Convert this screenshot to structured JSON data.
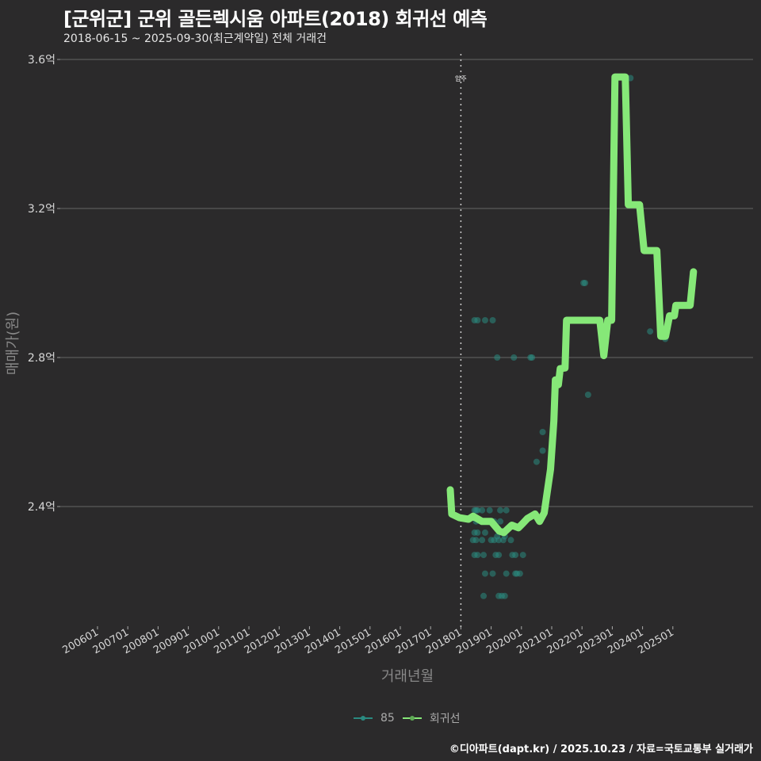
{
  "header": {
    "title": "[군위군] 군위 골든렉시움 아파트(2018) 회귀선 예측",
    "subtitle": "2018-06-15 ~ 2025-09-30(최근계약일) 전체 거래건"
  },
  "footer": {
    "credit": "©디아파트(dapt.kr) / 2025.10.23 / 자료=국토교통부 실거래가"
  },
  "legend": {
    "items": [
      {
        "label": "85",
        "color": "#2a8a80"
      },
      {
        "label": "회귀선",
        "color": "#86e878"
      }
    ]
  },
  "colors": {
    "background": "#2b2a2b",
    "grid": "#5a5a5a",
    "scatter": "#2a8a80",
    "regression": "#86e878",
    "annotation_line": "#cccccc"
  },
  "chart_data": {
    "type": "scatter",
    "title": "[군위군] 군위 골든렉시움 아파트(2018) 회귀선 예측",
    "subtitle": "2018-06-15 ~ 2025-09-30(최근계약일) 전체 거래건",
    "xlabel": "거래년월",
    "ylabel": "매매가(원)",
    "x_ticks": [
      "200601",
      "200701",
      "200801",
      "200901",
      "201001",
      "201101",
      "201201",
      "201301",
      "201401",
      "201501",
      "201601",
      "201701",
      "201801",
      "201901",
      "202001",
      "202101",
      "202201",
      "202301",
      "202401",
      "202501"
    ],
    "y_ticks": [
      "2.4억",
      "2.8억",
      "3.2억",
      "3.6억"
    ],
    "y_tick_values": [
      2.4,
      2.8,
      3.2,
      3.6
    ],
    "ylim": [
      2.08,
      3.6
    ],
    "xlim": [
      2005.8,
      2026.0
    ],
    "grid": true,
    "legend_position": "bottom",
    "annotation": {
      "label": "입주",
      "x": 2018.0
    },
    "series": [
      {
        "name": "85",
        "kind": "scatter",
        "points": [
          [
            2018.45,
            2.39
          ],
          [
            2018.5,
            2.39
          ],
          [
            2018.55,
            2.39
          ],
          [
            2018.7,
            2.39
          ],
          [
            2018.95,
            2.39
          ],
          [
            2019.3,
            2.39
          ],
          [
            2019.5,
            2.39
          ],
          [
            2018.5,
            2.36
          ],
          [
            2018.7,
            2.36
          ],
          [
            2018.9,
            2.36
          ],
          [
            2019.1,
            2.36
          ],
          [
            2019.3,
            2.36
          ],
          [
            2018.45,
            2.33
          ],
          [
            2018.55,
            2.33
          ],
          [
            2018.8,
            2.33
          ],
          [
            2019.2,
            2.32
          ],
          [
            2019.45,
            2.32
          ],
          [
            2018.4,
            2.31
          ],
          [
            2018.5,
            2.31
          ],
          [
            2018.7,
            2.31
          ],
          [
            2019.0,
            2.31
          ],
          [
            2019.1,
            2.31
          ],
          [
            2019.25,
            2.31
          ],
          [
            2019.4,
            2.31
          ],
          [
            2019.65,
            2.31
          ],
          [
            2018.45,
            2.27
          ],
          [
            2018.55,
            2.27
          ],
          [
            2018.75,
            2.27
          ],
          [
            2019.15,
            2.27
          ],
          [
            2019.25,
            2.27
          ],
          [
            2019.7,
            2.27
          ],
          [
            2019.8,
            2.27
          ],
          [
            2020.05,
            2.27
          ],
          [
            2018.8,
            2.22
          ],
          [
            2019.05,
            2.22
          ],
          [
            2019.5,
            2.22
          ],
          [
            2019.8,
            2.22
          ],
          [
            2019.85,
            2.22
          ],
          [
            2019.95,
            2.22
          ],
          [
            2018.75,
            2.16
          ],
          [
            2019.25,
            2.16
          ],
          [
            2019.35,
            2.16
          ],
          [
            2019.45,
            2.16
          ],
          [
            2018.45,
            2.9
          ],
          [
            2018.55,
            2.9
          ],
          [
            2018.8,
            2.9
          ],
          [
            2019.05,
            2.9
          ],
          [
            2019.2,
            2.8
          ],
          [
            2019.75,
            2.8
          ],
          [
            2020.3,
            2.8
          ],
          [
            2020.35,
            2.8
          ],
          [
            2020.5,
            2.52
          ],
          [
            2020.7,
            2.55
          ],
          [
            2020.7,
            2.6
          ],
          [
            2022.05,
            3.0
          ],
          [
            2022.1,
            3.0
          ],
          [
            2022.2,
            2.7
          ],
          [
            2023.6,
            3.55
          ],
          [
            2024.25,
            2.87
          ],
          [
            2024.75,
            2.85
          ]
        ]
      },
      {
        "name": "회귀선",
        "kind": "line",
        "points": [
          [
            2017.65,
            2.445
          ],
          [
            2017.7,
            2.38
          ],
          [
            2017.95,
            2.37
          ],
          [
            2018.25,
            2.366
          ],
          [
            2018.4,
            2.374
          ],
          [
            2018.7,
            2.36
          ],
          [
            2019.0,
            2.36
          ],
          [
            2019.27,
            2.334
          ],
          [
            2019.42,
            2.33
          ],
          [
            2019.68,
            2.35
          ],
          [
            2019.9,
            2.343
          ],
          [
            2020.05,
            2.355
          ],
          [
            2020.2,
            2.368
          ],
          [
            2020.45,
            2.38
          ],
          [
            2020.6,
            2.36
          ],
          [
            2020.75,
            2.383
          ],
          [
            2020.96,
            2.5
          ],
          [
            2021.07,
            2.63
          ],
          [
            2021.12,
            2.74
          ],
          [
            2021.22,
            2.727
          ],
          [
            2021.28,
            2.77
          ],
          [
            2021.44,
            2.772
          ],
          [
            2021.49,
            2.9
          ],
          [
            2022.59,
            2.9
          ],
          [
            2022.72,
            2.805
          ],
          [
            2022.85,
            2.9
          ],
          [
            2022.98,
            2.9
          ],
          [
            2023.09,
            3.553
          ],
          [
            2023.43,
            3.553
          ],
          [
            2023.53,
            3.21
          ],
          [
            2023.9,
            3.21
          ],
          [
            2024.05,
            3.087
          ],
          [
            2024.47,
            3.087
          ],
          [
            2024.6,
            2.857
          ],
          [
            2024.76,
            2.857
          ],
          [
            2024.89,
            2.912
          ],
          [
            2025.05,
            2.912
          ],
          [
            2025.1,
            2.94
          ],
          [
            2025.57,
            2.94
          ],
          [
            2025.68,
            3.03
          ]
        ]
      }
    ]
  }
}
